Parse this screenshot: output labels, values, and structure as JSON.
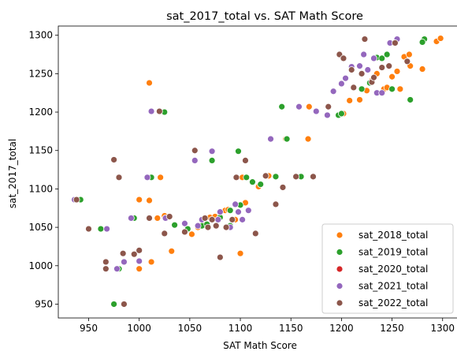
{
  "chart_data": {
    "type": "scatter",
    "title": "sat_2017_total vs. SAT Math Score",
    "xlabel": "SAT Math Score",
    "ylabel": "sat_2017_total",
    "xlim": [
      920,
      1315
    ],
    "ylim": [
      932,
      1312
    ],
    "xticks": [
      950,
      1000,
      1050,
      1100,
      1150,
      1200,
      1250,
      1300
    ],
    "yticks": [
      950,
      1000,
      1050,
      1100,
      1150,
      1200,
      1250,
      1300
    ],
    "grid": false,
    "legend_position": "lower-right",
    "series": [
      {
        "name": "sat_2018_total",
        "color": "#ff7f0e",
        "points": [
          [
            1010,
            1238
          ],
          [
            1021,
            1115
          ],
          [
            1008,
            1115
          ],
          [
            1000,
            1086
          ],
          [
            1010,
            1085
          ],
          [
            1018,
            1062
          ],
          [
            1000,
            996
          ],
          [
            1012,
            1005
          ],
          [
            1032,
            1019
          ],
          [
            1025,
            1065
          ],
          [
            1052,
            1041
          ],
          [
            1058,
            1050
          ],
          [
            1070,
            1063
          ],
          [
            1085,
            1072
          ],
          [
            1095,
            1060
          ],
          [
            1105,
            1082
          ],
          [
            1098,
            1149
          ],
          [
            1102,
            1115
          ],
          [
            1100,
            1016
          ],
          [
            1128,
            1117
          ],
          [
            1145,
            1165
          ],
          [
            1160,
            1116
          ],
          [
            1167,
            1165
          ],
          [
            1168,
            1207
          ],
          [
            1202,
            1198
          ],
          [
            1218,
            1216
          ],
          [
            1230,
            1241
          ],
          [
            1235,
            1250
          ],
          [
            1242,
            1230
          ],
          [
            1250,
            1246
          ],
          [
            1255,
            1253
          ],
          [
            1258,
            1230
          ],
          [
            1262,
            1272
          ],
          [
            1267,
            1275
          ],
          [
            1268,
            1260
          ],
          [
            1280,
            1256
          ],
          [
            1294,
            1292
          ],
          [
            1298,
            1296
          ],
          [
            1208,
            1215
          ],
          [
            1225,
            1228
          ],
          [
            1245,
            1232
          ],
          [
            1118,
            1103
          ],
          [
            1088,
            1073
          ],
          [
            1075,
            1064
          ],
          [
            1065,
            1056
          ]
        ]
      },
      {
        "name": "sat_2019_total",
        "color": "#2ca02c",
        "points": [
          [
            942,
            1086
          ],
          [
            962,
            1048
          ],
          [
            975,
            950
          ],
          [
            980,
            996
          ],
          [
            995,
            1062
          ],
          [
            1012,
            1115
          ],
          [
            1025,
            1200
          ],
          [
            1035,
            1053
          ],
          [
            1048,
            1048
          ],
          [
            1062,
            1052
          ],
          [
            1072,
            1137
          ],
          [
            1080,
            1063
          ],
          [
            1090,
            1052
          ],
          [
            1098,
            1149
          ],
          [
            1106,
            1115
          ],
          [
            1112,
            1109
          ],
          [
            1120,
            1106
          ],
          [
            1135,
            1116
          ],
          [
            1141,
            1207
          ],
          [
            1146,
            1165
          ],
          [
            1155,
            1116
          ],
          [
            1160,
            1116
          ],
          [
            1197,
            1196
          ],
          [
            1200,
            1198
          ],
          [
            1220,
            1230
          ],
          [
            1228,
            1238
          ],
          [
            1235,
            1271
          ],
          [
            1240,
            1270
          ],
          [
            1245,
            1275
          ],
          [
            1250,
            1230
          ],
          [
            1268,
            1216
          ],
          [
            1282,
            1295
          ],
          [
            1280,
            1291
          ],
          [
            1100,
            1079
          ],
          [
            1090,
            1072
          ],
          [
            1067,
            1054
          ]
        ]
      },
      {
        "name": "sat_2020_total",
        "color": "#d62728",
        "points": []
      },
      {
        "name": "sat_2021_total",
        "color": "#9467bd",
        "points": [
          [
            936,
            1086
          ],
          [
            968,
            1048
          ],
          [
            978,
            996
          ],
          [
            985,
            1005
          ],
          [
            992,
            1062
          ],
          [
            1000,
            1006
          ],
          [
            1008,
            1115
          ],
          [
            1012,
            1201
          ],
          [
            1026,
            1062
          ],
          [
            1045,
            1055
          ],
          [
            1055,
            1137
          ],
          [
            1058,
            1052
          ],
          [
            1072,
            1149
          ],
          [
            1080,
            1070
          ],
          [
            1095,
            1080
          ],
          [
            1102,
            1060
          ],
          [
            1130,
            1165
          ],
          [
            1158,
            1207
          ],
          [
            1175,
            1201
          ],
          [
            1186,
            1196
          ],
          [
            1192,
            1227
          ],
          [
            1200,
            1237
          ],
          [
            1204,
            1244
          ],
          [
            1210,
            1259
          ],
          [
            1218,
            1260
          ],
          [
            1222,
            1275
          ],
          [
            1226,
            1255
          ],
          [
            1232,
            1270
          ],
          [
            1235,
            1225
          ],
          [
            1248,
            1290
          ],
          [
            1255,
            1295
          ],
          [
            1240,
            1225
          ],
          [
            1098,
            1070
          ],
          [
            1108,
            1072
          ],
          [
            1078,
            1060
          ],
          [
            1090,
            1050
          ],
          [
            1062,
            1060
          ]
        ]
      },
      {
        "name": "sat_2022_total",
        "color": "#8c564b",
        "points": [
          [
            938,
            1086
          ],
          [
            950,
            1048
          ],
          [
            967,
            1005
          ],
          [
            967,
            996
          ],
          [
            975,
            1138
          ],
          [
            980,
            1115
          ],
          [
            984,
            1016
          ],
          [
            985,
            950
          ],
          [
            995,
            1015
          ],
          [
            1000,
            1020
          ],
          [
            1010,
            1062
          ],
          [
            1020,
            1201
          ],
          [
            1025,
            1042
          ],
          [
            1030,
            1064
          ],
          [
            1055,
            1150
          ],
          [
            1065,
            1062
          ],
          [
            1068,
            1050
          ],
          [
            1076,
            1052
          ],
          [
            1080,
            1011
          ],
          [
            1096,
            1115
          ],
          [
            1105,
            1137
          ],
          [
            1115,
            1042
          ],
          [
            1125,
            1117
          ],
          [
            1135,
            1080
          ],
          [
            1142,
            1102
          ],
          [
            1155,
            1116
          ],
          [
            1172,
            1116
          ],
          [
            1187,
            1207
          ],
          [
            1198,
            1275
          ],
          [
            1202,
            1270
          ],
          [
            1210,
            1255
          ],
          [
            1220,
            1250
          ],
          [
            1223,
            1295
          ],
          [
            1230,
            1239
          ],
          [
            1240,
            1258
          ],
          [
            1247,
            1260
          ],
          [
            1253,
            1290
          ],
          [
            1265,
            1266
          ],
          [
            1212,
            1232
          ],
          [
            1232,
            1245
          ],
          [
            1092,
            1060
          ],
          [
            1086,
            1050
          ],
          [
            1072,
            1060
          ],
          [
            1045,
            1044
          ]
        ]
      }
    ]
  }
}
